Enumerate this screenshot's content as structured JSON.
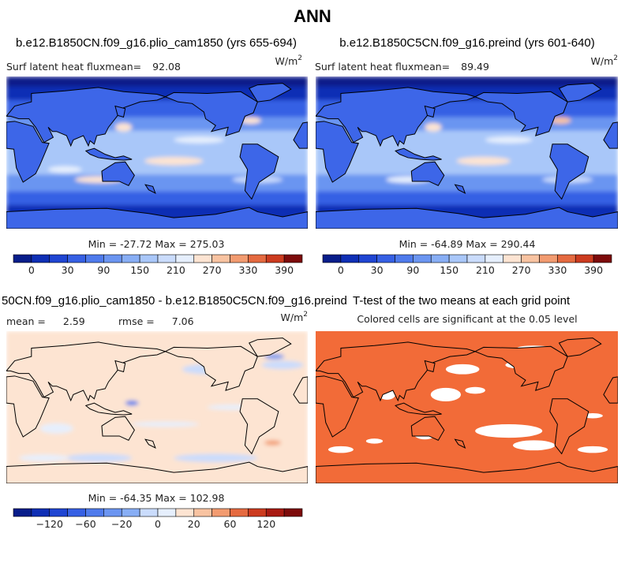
{
  "title": "ANN",
  "panels": [
    {
      "case": "b.e12.B1850CN.f09_g16.plio_cam1850 (yrs 655-694)",
      "variable": "Surf latent heat flux",
      "mean_label": "mean=",
      "mean": "92.08",
      "units": "W/m",
      "units_exponent": "2",
      "min_max": "Min = -27.72 Max = 275.03"
    },
    {
      "case": "b.e12.B1850C5CN.f09_g16.preind (yrs 601-640)",
      "variable": "Surf latent heat flux",
      "mean_label": "mean=",
      "mean": "89.49",
      "units": "W/m",
      "units_exponent": "2",
      "min_max": "Min = -64.89 Max = 290.44"
    },
    {
      "case": "50CN.f09_g16.plio_cam1850 - b.e12.B1850C5CN.f09_g16.preind",
      "mean_label": "mean =",
      "mean": "2.59",
      "rmse_label": "rmse =",
      "rmse": "7.06",
      "units": "W/m",
      "units_exponent": "2",
      "min_max": "Min = -64.35 Max = 102.98"
    },
    {
      "case": "T-test of the two means at each grid point",
      "subtitle": "Colored cells are significant at the 0.05 level"
    }
  ],
  "colorbars": [
    {
      "colors": [
        "#081d8a",
        "#0f2fb5",
        "#1f45d2",
        "#3660e4",
        "#4f7bec",
        "#6b95f1",
        "#88aef5",
        "#a9c7f9",
        "#cadcfc",
        "#e6effd",
        "#fde4d2",
        "#f8c3a1",
        "#f29b70",
        "#e56a40",
        "#cc3b1f",
        "#7d0b0b"
      ],
      "labels": [
        "0",
        "30",
        "90",
        "150",
        "210",
        "270",
        "330",
        "390"
      ]
    },
    {
      "colors": [
        "#081d8a",
        "#0f2fb5",
        "#1f45d2",
        "#3660e4",
        "#4f7bec",
        "#6b95f1",
        "#88aef5",
        "#a9c7f9",
        "#cadcfc",
        "#e6effd",
        "#fde4d2",
        "#f8c3a1",
        "#f29b70",
        "#e56a40",
        "#cc3b1f",
        "#7d0b0b"
      ],
      "labels": [
        "0",
        "30",
        "90",
        "150",
        "210",
        "270",
        "330",
        "390"
      ]
    },
    {
      "colors": [
        "#081d8a",
        "#0f2fb5",
        "#1f45d2",
        "#3660e4",
        "#4f7bec",
        "#6b95f1",
        "#88aef5",
        "#cadcfc",
        "#e6effd",
        "#fde4d2",
        "#f8c3a1",
        "#f29b70",
        "#e56a40",
        "#cc3b1f",
        "#a81a12",
        "#7d0b0b"
      ],
      "labels": [
        "−120",
        "−60",
        "−20",
        "0",
        "20",
        "60",
        "120"
      ]
    }
  ]
}
